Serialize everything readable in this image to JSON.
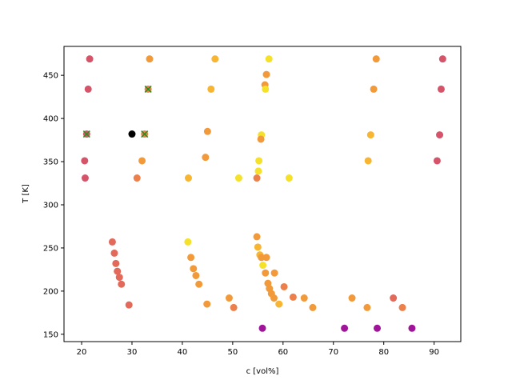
{
  "chart_data": {
    "type": "scatter",
    "title": "",
    "xlabel": "c [vol%]",
    "ylabel": "T [K]",
    "xlim": [
      16.5,
      95.3
    ],
    "ylim": [
      141.5,
      483.5
    ],
    "xticks": [
      20,
      30,
      40,
      50,
      60,
      70,
      80,
      90
    ],
    "yticks": [
      150,
      200,
      250,
      300,
      350,
      400,
      450
    ],
    "grid": false,
    "legend": "none",
    "colors": {
      "red": "#d6546a",
      "salmon": "#e3695a",
      "coral": "#ec7f4a",
      "orange": "#f29a3a",
      "amber": "#f7b531",
      "yellow": "#f5e12a",
      "black": "#000000",
      "purple": "#a0149a",
      "cross": "#2e8b1f"
    },
    "points": [
      {
        "x": 21.6,
        "y": 469,
        "c": "red"
      },
      {
        "x": 33.5,
        "y": 469,
        "c": "orange"
      },
      {
        "x": 46.5,
        "y": 469,
        "c": "amber"
      },
      {
        "x": 57.2,
        "y": 469,
        "c": "yellow"
      },
      {
        "x": 78.5,
        "y": 469,
        "c": "orange"
      },
      {
        "x": 91.7,
        "y": 469,
        "c": "red"
      },
      {
        "x": 56.7,
        "y": 451,
        "c": "orange"
      },
      {
        "x": 21.3,
        "y": 434,
        "c": "red"
      },
      {
        "x": 33.2,
        "y": 434,
        "c": "coral"
      },
      {
        "x": 45.7,
        "y": 434,
        "c": "amber"
      },
      {
        "x": 56.4,
        "y": 439,
        "c": "orange"
      },
      {
        "x": 56.5,
        "y": 434,
        "c": "yellow"
      },
      {
        "x": 78.0,
        "y": 434,
        "c": "orange"
      },
      {
        "x": 91.4,
        "y": 434,
        "c": "red"
      },
      {
        "x": 21.0,
        "y": 382,
        "c": "red"
      },
      {
        "x": 30.0,
        "y": 382,
        "c": "black"
      },
      {
        "x": 32.5,
        "y": 382,
        "c": "coral"
      },
      {
        "x": 45.0,
        "y": 385,
        "c": "orange"
      },
      {
        "x": 55.7,
        "y": 381,
        "c": "yellow"
      },
      {
        "x": 55.6,
        "y": 376,
        "c": "orange"
      },
      {
        "x": 77.4,
        "y": 381,
        "c": "amber"
      },
      {
        "x": 91.1,
        "y": 381,
        "c": "red"
      },
      {
        "x": 20.6,
        "y": 351,
        "c": "red"
      },
      {
        "x": 32.0,
        "y": 351,
        "c": "orange"
      },
      {
        "x": 44.6,
        "y": 355,
        "c": "orange"
      },
      {
        "x": 55.2,
        "y": 351,
        "c": "yellow"
      },
      {
        "x": 76.9,
        "y": 351,
        "c": "amber"
      },
      {
        "x": 90.6,
        "y": 351,
        "c": "red"
      },
      {
        "x": 20.7,
        "y": 331,
        "c": "red"
      },
      {
        "x": 31.0,
        "y": 331,
        "c": "coral"
      },
      {
        "x": 41.2,
        "y": 331,
        "c": "amber"
      },
      {
        "x": 51.2,
        "y": 331,
        "c": "yellow"
      },
      {
        "x": 54.8,
        "y": 331,
        "c": "coral"
      },
      {
        "x": 55.1,
        "y": 339,
        "c": "yellow"
      },
      {
        "x": 61.2,
        "y": 331,
        "c": "yellow"
      },
      {
        "x": 26.1,
        "y": 257,
        "c": "salmon"
      },
      {
        "x": 26.5,
        "y": 244,
        "c": "salmon"
      },
      {
        "x": 26.8,
        "y": 232,
        "c": "salmon"
      },
      {
        "x": 27.1,
        "y": 223,
        "c": "salmon"
      },
      {
        "x": 27.5,
        "y": 216,
        "c": "salmon"
      },
      {
        "x": 27.9,
        "y": 208,
        "c": "salmon"
      },
      {
        "x": 29.4,
        "y": 184,
        "c": "salmon"
      },
      {
        "x": 41.1,
        "y": 257,
        "c": "yellow"
      },
      {
        "x": 41.7,
        "y": 239,
        "c": "orange"
      },
      {
        "x": 42.2,
        "y": 226,
        "c": "orange"
      },
      {
        "x": 42.7,
        "y": 218,
        "c": "orange"
      },
      {
        "x": 43.3,
        "y": 208,
        "c": "orange"
      },
      {
        "x": 44.9,
        "y": 185,
        "c": "orange"
      },
      {
        "x": 49.3,
        "y": 192,
        "c": "orange"
      },
      {
        "x": 50.2,
        "y": 181,
        "c": "coral"
      },
      {
        "x": 54.8,
        "y": 263,
        "c": "orange"
      },
      {
        "x": 55.0,
        "y": 251,
        "c": "amber"
      },
      {
        "x": 55.4,
        "y": 242,
        "c": "amber"
      },
      {
        "x": 55.7,
        "y": 239,
        "c": "orange"
      },
      {
        "x": 56.7,
        "y": 239,
        "c": "orange"
      },
      {
        "x": 56.0,
        "y": 230,
        "c": "yellow"
      },
      {
        "x": 56.5,
        "y": 221,
        "c": "orange"
      },
      {
        "x": 57.0,
        "y": 209,
        "c": "orange"
      },
      {
        "x": 57.3,
        "y": 203,
        "c": "orange"
      },
      {
        "x": 57.7,
        "y": 197,
        "c": "orange"
      },
      {
        "x": 58.2,
        "y": 192,
        "c": "orange"
      },
      {
        "x": 58.3,
        "y": 221,
        "c": "orange"
      },
      {
        "x": 59.2,
        "y": 185,
        "c": "amber"
      },
      {
        "x": 60.2,
        "y": 205,
        "c": "coral"
      },
      {
        "x": 62.0,
        "y": 193,
        "c": "coral"
      },
      {
        "x": 64.2,
        "y": 192,
        "c": "orange"
      },
      {
        "x": 65.9,
        "y": 181,
        "c": "orange"
      },
      {
        "x": 73.7,
        "y": 192,
        "c": "orange"
      },
      {
        "x": 76.7,
        "y": 181,
        "c": "orange"
      },
      {
        "x": 81.9,
        "y": 192,
        "c": "salmon"
      },
      {
        "x": 83.7,
        "y": 181,
        "c": "coral"
      },
      {
        "x": 55.9,
        "y": 157,
        "c": "purple"
      },
      {
        "x": 72.2,
        "y": 157,
        "c": "purple"
      },
      {
        "x": 78.7,
        "y": 157,
        "c": "purple"
      },
      {
        "x": 85.6,
        "y": 157,
        "c": "purple"
      }
    ],
    "crosses": [
      {
        "x": 21.0,
        "y": 382
      },
      {
        "x": 32.5,
        "y": 382
      },
      {
        "x": 33.2,
        "y": 434
      }
    ]
  }
}
